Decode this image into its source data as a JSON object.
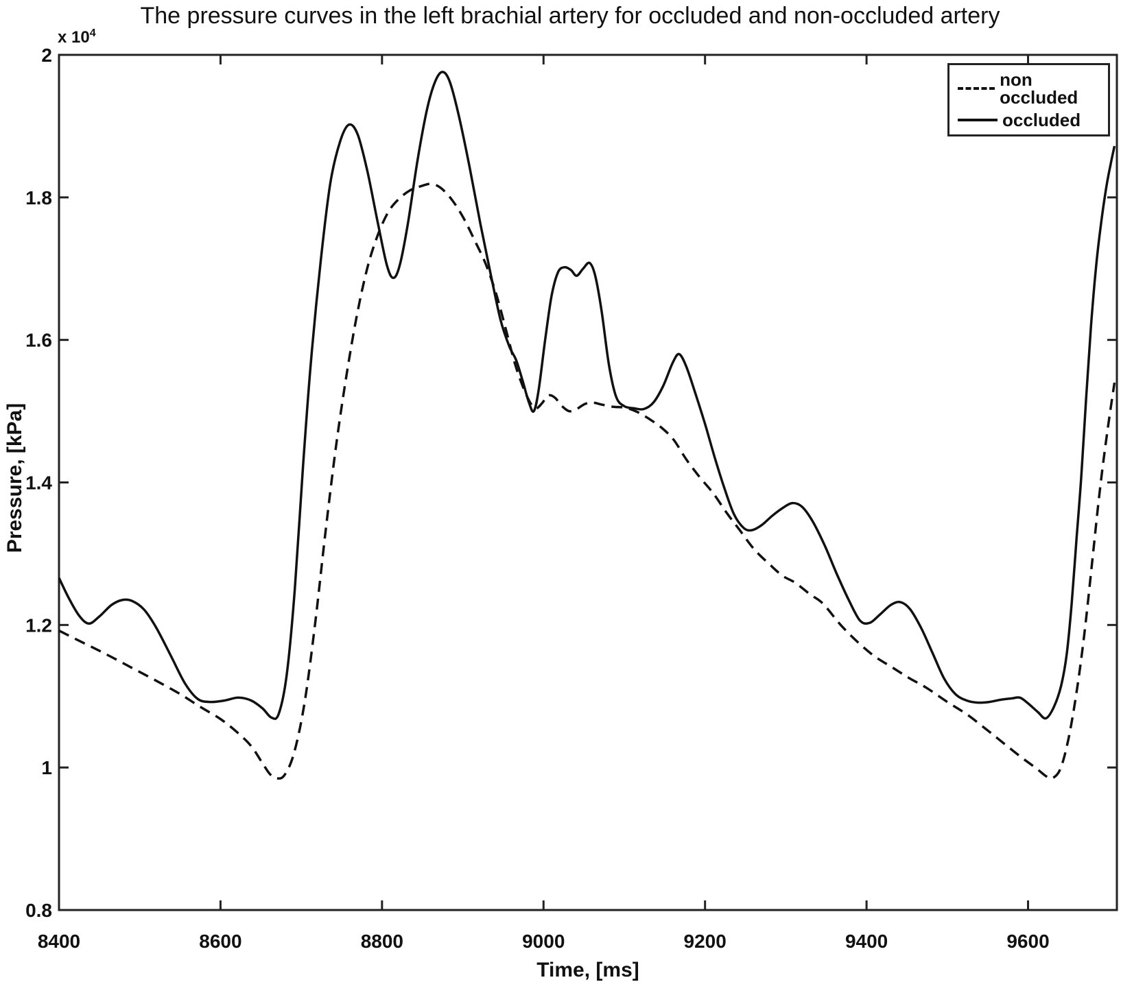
{
  "chart_data": {
    "type": "line",
    "title": "The pressure curves in the left brachial artery for occluded and non-occluded artery",
    "xlabel": "Time, [ms]",
    "ylabel": "Pressure, [kPa]",
    "y_axis_multiplier": "x 10",
    "y_axis_multiplier_exp": "4",
    "y_unit_scale": "1e4",
    "xlim": [
      8400,
      9710
    ],
    "ylim": [
      0.8,
      2.0
    ],
    "x_ticks": [
      8400,
      8600,
      8800,
      9000,
      9200,
      9400,
      9600
    ],
    "y_ticks": [
      0.8,
      1,
      1.2,
      1.4,
      1.6,
      1.8,
      2
    ],
    "grid": false,
    "line_color": "#111111",
    "axis_color": "#222222",
    "legend": {
      "position": "top-right",
      "entries": [
        "non occluded",
        "occluded"
      ]
    },
    "series": [
      {
        "name": "non occluded",
        "line_style": "dashed",
        "color": "#111111",
        "points": [
          [
            8400,
            1.192
          ],
          [
            8430,
            1.175
          ],
          [
            8460,
            1.158
          ],
          [
            8490,
            1.14
          ],
          [
            8520,
            1.122
          ],
          [
            8550,
            1.103
          ],
          [
            8575,
            1.085
          ],
          [
            8600,
            1.068
          ],
          [
            8620,
            1.05
          ],
          [
            8638,
            1.03
          ],
          [
            8652,
            1.006
          ],
          [
            8661,
            0.991
          ],
          [
            8669,
            0.985
          ],
          [
            8679,
            0.989
          ],
          [
            8691,
            1.02
          ],
          [
            8704,
            1.09
          ],
          [
            8717,
            1.2
          ],
          [
            8730,
            1.33
          ],
          [
            8743,
            1.45
          ],
          [
            8756,
            1.55
          ],
          [
            8769,
            1.635
          ],
          [
            8782,
            1.702
          ],
          [
            8795,
            1.748
          ],
          [
            8808,
            1.78
          ],
          [
            8821,
            1.798
          ],
          [
            8835,
            1.81
          ],
          [
            8849,
            1.816
          ],
          [
            8861,
            1.819
          ],
          [
            8873,
            1.813
          ],
          [
            8887,
            1.796
          ],
          [
            8901,
            1.771
          ],
          [
            8915,
            1.739
          ],
          [
            8929,
            1.705
          ],
          [
            8942,
            1.662
          ],
          [
            8954,
            1.612
          ],
          [
            8965,
            1.565
          ],
          [
            8975,
            1.533
          ],
          [
            8984,
            1.511
          ],
          [
            8991,
            1.504
          ],
          [
            8998,
            1.511
          ],
          [
            9006,
            1.522
          ],
          [
            9014,
            1.519
          ],
          [
            9023,
            1.507
          ],
          [
            9032,
            1.5
          ],
          [
            9041,
            1.503
          ],
          [
            9051,
            1.51
          ],
          [
            9061,
            1.512
          ],
          [
            9073,
            1.509
          ],
          [
            9087,
            1.506
          ],
          [
            9101,
            1.505
          ],
          [
            9116,
            1.499
          ],
          [
            9131,
            1.489
          ],
          [
            9146,
            1.477
          ],
          [
            9161,
            1.46
          ],
          [
            9177,
            1.432
          ],
          [
            9193,
            1.408
          ],
          [
            9210,
            1.385
          ],
          [
            9227,
            1.357
          ],
          [
            9243,
            1.333
          ],
          [
            9261,
            1.306
          ],
          [
            9280,
            1.285
          ],
          [
            9296,
            1.269
          ],
          [
            9312,
            1.259
          ],
          [
            9330,
            1.243
          ],
          [
            9346,
            1.23
          ],
          [
            9368,
            1.2
          ],
          [
            9390,
            1.175
          ],
          [
            9410,
            1.156
          ],
          [
            9431,
            1.141
          ],
          [
            9452,
            1.126
          ],
          [
            9474,
            1.112
          ],
          [
            9500,
            1.092
          ],
          [
            9525,
            1.074
          ],
          [
            9550,
            1.052
          ],
          [
            9572,
            1.032
          ],
          [
            9592,
            1.014
          ],
          [
            9610,
            0.999
          ],
          [
            9622,
            0.988
          ],
          [
            9630,
            0.985
          ],
          [
            9640,
            0.998
          ],
          [
            9650,
            1.04
          ],
          [
            9660,
            1.105
          ],
          [
            9670,
            1.19
          ],
          [
            9680,
            1.295
          ],
          [
            9689,
            1.39
          ],
          [
            9698,
            1.47
          ],
          [
            9707,
            1.54
          ]
        ]
      },
      {
        "name": "occluded",
        "line_style": "solid",
        "color": "#111111",
        "points": [
          [
            8400,
            1.266
          ],
          [
            8412,
            1.238
          ],
          [
            8425,
            1.213
          ],
          [
            8437,
            1.202
          ],
          [
            8450,
            1.212
          ],
          [
            8465,
            1.228
          ],
          [
            8478,
            1.235
          ],
          [
            8490,
            1.234
          ],
          [
            8505,
            1.222
          ],
          [
            8520,
            1.197
          ],
          [
            8538,
            1.158
          ],
          [
            8556,
            1.118
          ],
          [
            8572,
            1.096
          ],
          [
            8588,
            1.092
          ],
          [
            8605,
            1.094
          ],
          [
            8622,
            1.098
          ],
          [
            8638,
            1.094
          ],
          [
            8652,
            1.083
          ],
          [
            8663,
            1.07
          ],
          [
            8672,
            1.075
          ],
          [
            8682,
            1.13
          ],
          [
            8692,
            1.25
          ],
          [
            8702,
            1.42
          ],
          [
            8712,
            1.57
          ],
          [
            8724,
            1.71
          ],
          [
            8736,
            1.82
          ],
          [
            8748,
            1.878
          ],
          [
            8759,
            1.902
          ],
          [
            8770,
            1.888
          ],
          [
            8782,
            1.836
          ],
          [
            8795,
            1.763
          ],
          [
            8806,
            1.705
          ],
          [
            8814,
            1.687
          ],
          [
            8822,
            1.705
          ],
          [
            8832,
            1.763
          ],
          [
            8844,
            1.852
          ],
          [
            8856,
            1.925
          ],
          [
            8866,
            1.963
          ],
          [
            8875,
            1.976
          ],
          [
            8884,
            1.962
          ],
          [
            8895,
            1.915
          ],
          [
            8908,
            1.845
          ],
          [
            8922,
            1.762
          ],
          [
            8935,
            1.69
          ],
          [
            8947,
            1.627
          ],
          [
            8958,
            1.59
          ],
          [
            8966,
            1.572
          ],
          [
            8974,
            1.543
          ],
          [
            8982,
            1.512
          ],
          [
            8988,
            1.5
          ],
          [
            8994,
            1.53
          ],
          [
            9002,
            1.6
          ],
          [
            9010,
            1.662
          ],
          [
            9018,
            1.695
          ],
          [
            9026,
            1.702
          ],
          [
            9034,
            1.698
          ],
          [
            9041,
            1.69
          ],
          [
            9049,
            1.7
          ],
          [
            9057,
            1.708
          ],
          [
            9064,
            1.69
          ],
          [
            9072,
            1.64
          ],
          [
            9081,
            1.565
          ],
          [
            9090,
            1.52
          ],
          [
            9100,
            1.507
          ],
          [
            9112,
            1.504
          ],
          [
            9124,
            1.503
          ],
          [
            9136,
            1.512
          ],
          [
            9148,
            1.535
          ],
          [
            9160,
            1.568
          ],
          [
            9168,
            1.58
          ],
          [
            9177,
            1.562
          ],
          [
            9188,
            1.525
          ],
          [
            9200,
            1.482
          ],
          [
            9212,
            1.435
          ],
          [
            9224,
            1.392
          ],
          [
            9236,
            1.355
          ],
          [
            9248,
            1.336
          ],
          [
            9258,
            1.333
          ],
          [
            9270,
            1.34
          ],
          [
            9283,
            1.353
          ],
          [
            9296,
            1.364
          ],
          [
            9308,
            1.371
          ],
          [
            9320,
            1.366
          ],
          [
            9333,
            1.346
          ],
          [
            9348,
            1.312
          ],
          [
            9363,
            1.272
          ],
          [
            9378,
            1.235
          ],
          [
            9392,
            1.206
          ],
          [
            9404,
            1.203
          ],
          [
            9416,
            1.214
          ],
          [
            9430,
            1.228
          ],
          [
            9442,
            1.232
          ],
          [
            9454,
            1.222
          ],
          [
            9468,
            1.195
          ],
          [
            9482,
            1.16
          ],
          [
            9496,
            1.125
          ],
          [
            9510,
            1.103
          ],
          [
            9524,
            1.094
          ],
          [
            9538,
            1.091
          ],
          [
            9552,
            1.092
          ],
          [
            9566,
            1.095
          ],
          [
            9580,
            1.097
          ],
          [
            9590,
            1.098
          ],
          [
            9600,
            1.09
          ],
          [
            9612,
            1.078
          ],
          [
            9622,
            1.069
          ],
          [
            9632,
            1.085
          ],
          [
            9641,
            1.115
          ],
          [
            9648,
            1.16
          ],
          [
            9654,
            1.23
          ],
          [
            9660,
            1.32
          ],
          [
            9666,
            1.41
          ],
          [
            9672,
            1.52
          ],
          [
            9678,
            1.62
          ],
          [
            9684,
            1.7
          ],
          [
            9690,
            1.76
          ],
          [
            9697,
            1.815
          ],
          [
            9702,
            1.845
          ],
          [
            9707,
            1.872
          ]
        ]
      }
    ]
  }
}
